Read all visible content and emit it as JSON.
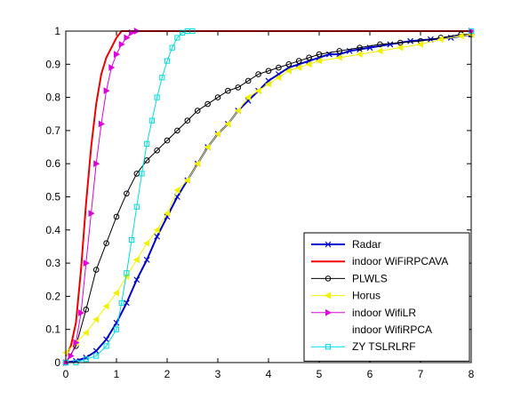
{
  "chart_data": {
    "type": "line",
    "title": "",
    "xlabel": "",
    "ylabel": "",
    "xlim": [
      0,
      8
    ],
    "ylim": [
      0,
      1
    ],
    "xticks": [
      0,
      1,
      2,
      3,
      4,
      5,
      6,
      7,
      8
    ],
    "yticks": [
      0,
      0.1,
      0.2,
      0.3,
      0.4,
      0.5,
      0.6,
      0.7,
      0.8,
      0.9,
      1
    ],
    "xtick_labels": [
      "0",
      "1",
      "2",
      "3",
      "4",
      "5",
      "6",
      "7",
      "8"
    ],
    "ytick_labels": [
      "0",
      "0.1",
      "0.2",
      "0.3",
      "0.4",
      "0.5",
      "0.6",
      "0.7",
      "0.8",
      "0.9",
      "1"
    ],
    "grid": false,
    "legend_position": "bottom-right",
    "series": [
      {
        "name": "Radar",
        "color": "#0000cc",
        "marker": "x",
        "line_width": 2,
        "x": [
          0,
          0.2,
          0.4,
          0.6,
          0.8,
          1.0,
          1.2,
          1.4,
          1.6,
          1.8,
          2.0,
          2.2,
          2.4,
          2.6,
          2.8,
          3.0,
          3.2,
          3.4,
          3.6,
          3.8,
          4.0,
          4.2,
          4.4,
          4.6,
          4.8,
          5.0,
          5.2,
          5.4,
          5.6,
          5.8,
          6.0,
          6.4,
          6.8,
          7.2,
          7.6,
          8.0
        ],
        "y": [
          0,
          0.005,
          0.015,
          0.035,
          0.07,
          0.12,
          0.18,
          0.25,
          0.31,
          0.38,
          0.44,
          0.5,
          0.55,
          0.6,
          0.65,
          0.69,
          0.72,
          0.76,
          0.79,
          0.82,
          0.85,
          0.87,
          0.89,
          0.9,
          0.91,
          0.92,
          0.93,
          0.93,
          0.94,
          0.945,
          0.95,
          0.96,
          0.97,
          0.975,
          0.98,
          0.99
        ]
      },
      {
        "name": "indoor WiFiRPCAVA",
        "color": "#ee0000",
        "marker": "none",
        "line_width": 2,
        "x": [
          0,
          0.1,
          0.2,
          0.3,
          0.4,
          0.5,
          0.6,
          0.7,
          0.8,
          0.9,
          1.0,
          1.1,
          1.2,
          8.0
        ],
        "y": [
          0.02,
          0.05,
          0.12,
          0.28,
          0.48,
          0.65,
          0.78,
          0.87,
          0.92,
          0.95,
          0.98,
          1.0,
          1.0,
          1.0
        ]
      },
      {
        "name": "PLWLS",
        "color": "#000000",
        "marker": "o",
        "line_width": 1,
        "x": [
          0,
          0.2,
          0.4,
          0.6,
          0.8,
          1.0,
          1.2,
          1.4,
          1.6,
          1.8,
          2.0,
          2.2,
          2.4,
          2.6,
          2.8,
          3.0,
          3.2,
          3.4,
          3.6,
          3.8,
          4.0,
          4.2,
          4.4,
          4.6,
          4.8,
          5.0,
          5.4,
          5.8,
          6.2,
          6.6,
          7.0,
          7.4,
          7.8,
          8.0
        ],
        "y": [
          0,
          0.05,
          0.16,
          0.28,
          0.36,
          0.44,
          0.51,
          0.57,
          0.61,
          0.64,
          0.67,
          0.7,
          0.73,
          0.76,
          0.78,
          0.8,
          0.82,
          0.83,
          0.85,
          0.87,
          0.88,
          0.89,
          0.9,
          0.91,
          0.92,
          0.93,
          0.94,
          0.95,
          0.96,
          0.965,
          0.97,
          0.98,
          0.99,
          0.99
        ]
      },
      {
        "name": "Horus",
        "color": "#f2f200",
        "marker": "triangle-left",
        "line_width": 1,
        "x": [
          0,
          0.2,
          0.4,
          0.6,
          0.8,
          1.0,
          1.2,
          1.4,
          1.6,
          1.8,
          2.0,
          2.2,
          2.4,
          2.6,
          2.8,
          3.0,
          3.2,
          3.4,
          3.6,
          3.8,
          4.0,
          4.2,
          4.4,
          4.6,
          4.8,
          5.0,
          5.4,
          5.8,
          6.2,
          6.6,
          7.0,
          7.4,
          7.8,
          8.0
        ],
        "y": [
          0.03,
          0.06,
          0.09,
          0.13,
          0.17,
          0.21,
          0.26,
          0.31,
          0.36,
          0.4,
          0.45,
          0.52,
          0.55,
          0.6,
          0.65,
          0.69,
          0.72,
          0.76,
          0.8,
          0.82,
          0.84,
          0.86,
          0.88,
          0.89,
          0.9,
          0.91,
          0.92,
          0.93,
          0.94,
          0.95,
          0.96,
          0.975,
          0.985,
          0.99
        ]
      },
      {
        "name": "indoor WifiLR",
        "color": "#dd00dd",
        "marker": "triangle-right",
        "line_width": 1,
        "x": [
          0,
          0.1,
          0.2,
          0.3,
          0.4,
          0.5,
          0.6,
          0.7,
          0.8,
          0.9,
          1.0,
          1.1,
          1.2,
          1.3,
          1.4,
          8.0
        ],
        "y": [
          0,
          0.02,
          0.06,
          0.15,
          0.3,
          0.45,
          0.6,
          0.72,
          0.82,
          0.89,
          0.93,
          0.96,
          0.98,
          0.995,
          1.0,
          1.0
        ]
      },
      {
        "name": "indoor WifiRPCA",
        "color": "#ffffff",
        "marker": "none",
        "line_width": 1,
        "x": [
          0,
          8.0
        ],
        "y": [
          0,
          0
        ]
      },
      {
        "name": "ZY TSLRLRF",
        "color": "#00dddd",
        "marker": "square",
        "line_width": 1,
        "x": [
          0,
          0.2,
          0.4,
          0.6,
          0.8,
          1.0,
          1.1,
          1.2,
          1.3,
          1.4,
          1.5,
          1.6,
          1.7,
          1.8,
          1.9,
          2.0,
          2.1,
          2.2,
          2.3,
          2.4,
          2.5,
          8.0
        ],
        "y": [
          0,
          0,
          0.01,
          0.02,
          0.05,
          0.1,
          0.18,
          0.27,
          0.37,
          0.47,
          0.57,
          0.66,
          0.73,
          0.8,
          0.86,
          0.91,
          0.95,
          0.98,
          0.995,
          1.0,
          1.0,
          1.0
        ]
      }
    ]
  }
}
